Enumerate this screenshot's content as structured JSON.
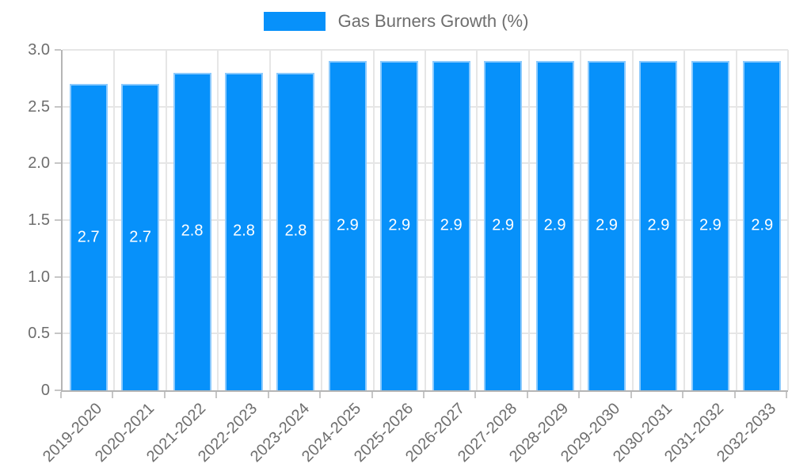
{
  "chart_data": {
    "type": "bar",
    "title": "Gas Burners Growth (%)",
    "categories": [
      "2019-2020",
      "2020-2021",
      "2021-2022",
      "2022-2023",
      "2023-2024",
      "2024-2025",
      "2025-2026",
      "2026-2027",
      "2027-2028",
      "2028-2029",
      "2029-2030",
      "2030-2031",
      "2031-2032",
      "2032-2033"
    ],
    "values": [
      2.7,
      2.7,
      2.8,
      2.8,
      2.8,
      2.9,
      2.9,
      2.9,
      2.9,
      2.9,
      2.9,
      2.9,
      2.9,
      2.9
    ],
    "xlabel": "",
    "ylabel": "",
    "ylim": [
      0,
      3.0
    ],
    "ytick_labels": [
      "0",
      "0.5",
      "1.0",
      "1.5",
      "2.0",
      "2.5",
      "3.0"
    ],
    "grid": true,
    "legend_position": "top",
    "colors": {
      "bar_fill": "#0791fa",
      "bar_border": "#8ccafd",
      "value_label": "#ffffff",
      "axis_text": "#6e6e6e",
      "grid_line": "#e6e6e6",
      "axis_line": "#b5b5b5",
      "tick_mark": "#c6c6c6"
    }
  }
}
